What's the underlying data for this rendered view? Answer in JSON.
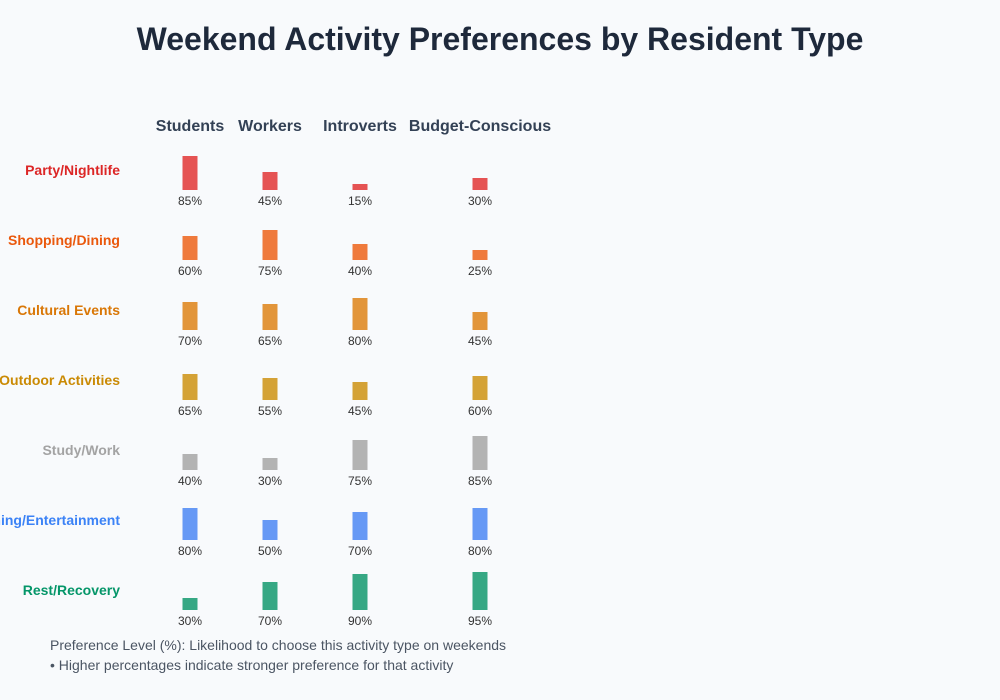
{
  "chart_data": {
    "type": "bar",
    "title": "Weekend Activity Preferences by Resident Type",
    "columns": [
      "Students",
      "Workers",
      "Introverts",
      "Budget-Conscious"
    ],
    "rows": [
      {
        "label": "Party/Nightlife",
        "color": "#e55353",
        "label_color": "#dc2626",
        "values": [
          85,
          45,
          15,
          30
        ]
      },
      {
        "label": "Shopping/Dining",
        "color": "#ef7a3c",
        "label_color": "#ea580c",
        "values": [
          60,
          75,
          40,
          25
        ]
      },
      {
        "label": "Cultural Events",
        "color": "#e2953a",
        "label_color": "#d97706",
        "values": [
          70,
          65,
          80,
          45
        ]
      },
      {
        "label": "Outdoor Activities",
        "color": "#d4a236",
        "label_color": "#ca8a04",
        "values": [
          65,
          55,
          45,
          60
        ]
      },
      {
        "label": "Study/Work",
        "color": "#b3b3b3",
        "label_color": "#a3a3a3",
        "values": [
          40,
          30,
          75,
          85
        ]
      },
      {
        "label": "Gaming/Entertainment",
        "color": "#6699f5",
        "label_color": "#3b82f6",
        "values": [
          80,
          50,
          70,
          80
        ]
      },
      {
        "label": "Rest/Recovery",
        "color": "#36a884",
        "label_color": "#059669",
        "values": [
          30,
          70,
          90,
          95
        ]
      }
    ],
    "value_suffix": "%",
    "ylim": [
      0,
      100
    ],
    "notes": [
      "Preference Level (%): Likelihood to choose this activity type on weekends",
      "• Higher percentages indicate stronger preference for that activity"
    ]
  }
}
